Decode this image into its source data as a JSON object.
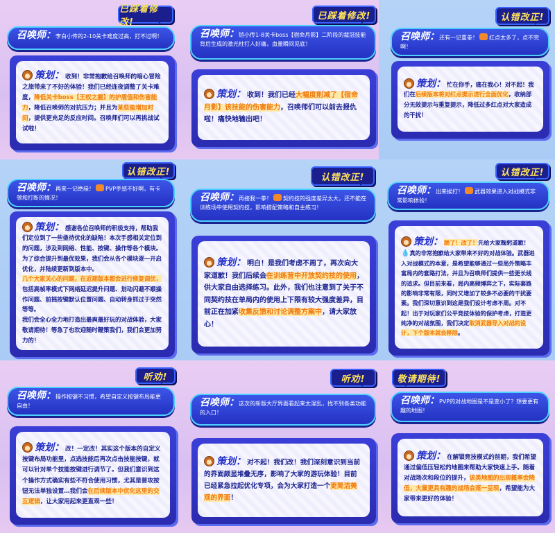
{
  "labels": {
    "player": "召唤师：",
    "designer": "策划："
  },
  "colors": {
    "badge_bg": "#1b1f8e",
    "badge_text": "#ffe35a",
    "bubble": "#2f44d8",
    "highlight": "#f07a10",
    "reply_text": "#1d2490"
  },
  "cards": [
    {
      "badge": "已踩着修改!",
      "player": "李白小传的2-10关卡难度过高，打不过啊！",
      "reply": [
        {
          "t": "收到！非常抱歉给召唤师的暗心冒险之旅带来了不好的体验！我们已经连夜调整了关卡难度，"
        },
        {
          "t": "降低关卡boss【王权之握】的护盾值和伤害能力",
          "hl": true
        },
        {
          "t": "，降低召唤师的对抗压力；并且为"
        },
        {
          "t": "某些能增加时间",
          "hl": true
        },
        {
          "t": "，提供更充足的反应时间。召唤师们可以再挑战试试啦！"
        }
      ]
    },
    {
      "badge": "已踩着修改!",
      "player": "铠小传1-8关卡boss【宿命月影】二阶段的裁冠技能背后生成的激光柱打人好痛，血量瞬间见底！",
      "reply": [
        {
          "t": "收到！我们已经"
        },
        {
          "t": "大幅度削减了【宿命月影】该技能的伤害能力",
          "hl": true
        },
        {
          "t": "，召唤师们可以前去报仇啦！痛快地输出吧！"
        }
      ]
    },
    {
      "badge": "认错改正!",
      "player_pre": "还有一记重拳！",
      "player": "红点太多了，点不完啊！",
      "icon": "fist-icon",
      "reply": [
        {
          "t": "忙在你手，痛在我心！对不起！我们在"
        },
        {
          "t": "后续版本将对红点提示进行全面优化",
          "hl": true
        },
        {
          "t": "，收纳部分无效提示与重复提示，降低过多红点对大家造成的干扰！"
        }
      ]
    },
    {
      "badge": "认错改正!",
      "player_pre": "再来一记绝缘！",
      "player": "PVP手感不好啊，有卡顿和打断的情况！",
      "icon": "fist-icon",
      "reply": [
        {
          "t": "感谢各位召唤师的积极支持，帮助我们定位到了一些亟待优化的缺陷！本次手感相关定位到的问题，涉及到网络、性能、按键、操作等各个模块。为了综合提升到最优效果，我们会从各个模块逐一开启优化，并陆续更新到版本中。"
        },
        {
          "br": true
        },
        {
          "t": "几个大家关心的问题，在近期版本都会进行修复调优，",
          "hl": true
        },
        {
          "t": "包括高帧率模式下网络延迟提升问题、划动闪避不顺操作问题、前摇按键默认位置问题、自动转身抓过于突然等等。"
        },
        {
          "br": true
        },
        {
          "t": "我们会全心全力地打造出最爽最好玩的对战体验，大家敬请期待！等急了也欢迎随时鞭策我们，我们会更加努力的！"
        }
      ]
    },
    {
      "badge": "认错改正!",
      "player_pre": "再接我一拳！",
      "player": "契约技的强度差异太大，还不能在训练场中使用契约技，影响搭配策略和自主练习！",
      "icon": "fist-icon",
      "reply": [
        {
          "t": "明白！是我们考虑不周了，再次向大家道歉！我们后续会"
        },
        {
          "t": "在训练营中开放契约技的使用",
          "hl": true
        },
        {
          "t": "，供大家自由选择练习。此外，我们也注意到了关于不同契约技在单局内的使用上下限有较大强度差异，目前正在加紧"
        },
        {
          "t": "收集反馈和讨论调整方案中",
          "hl": true
        },
        {
          "t": "，请大家放心！"
        }
      ]
    },
    {
      "badge": "认错改正!",
      "player_pre": "出来挨打！",
      "player": "武器效果进入对战模式非常影响体验！",
      "icon": "fist-icon",
      "reply": [
        {
          "t": "跪了！改了！",
          "hl": true
        },
        {
          "t": "先给大家鞠躬道歉！"
        },
        {
          "drop": true
        },
        {
          "t": "真的非常抱歉给大家带来不好的对战体验。武器进入对战模式的本意，是希望能够通过一些局外策略丰富局内的套路打法，并且为召唤师们提供一些更长线的追求。但目前来看，局内高频博弈之下，实际套路的影响非常有限，同时又增加了较多不必要的干扰要素。我们深切意识到这是我们设计考虑不周。对不起！出于对玩家们公平竞技体验的保护考虑，打造更纯净的对战氛围，我们决定"
        },
        {
          "t": "取消武器导入对战的设计，下个版本就会移除",
          "hl": true
        },
        {
          "t": "。"
        }
      ]
    },
    {
      "badge": "听劝!",
      "player": "操作按键不习惯，希望自定义按键布局能更自由！",
      "reply": [
        {
          "t": "改！一定改！其实这个版本的自定义按键布局功能里，点选技能后再次点击技能按键，就可以针对单个技能按键进行调节了。但我们意识到这个操作方式确实有些不符合使用习惯，尤其是普攻按钮无法单独设置…我们会"
        },
        {
          "t": "在后续版本中优化这里的交互逻辑",
          "hl": true
        },
        {
          "t": "，让大家用起来更直观一些！"
        }
      ]
    },
    {
      "badge": "听劝!",
      "player": "这次的新版大厅界面看起来太混乱，找不到各类功能的入口！",
      "reply": [
        {
          "t": "对不起！我们改！我们深刻意识到当前的界面颇显堆叠无序，影响了大家的游玩体验！目前已经紧急拉起优化专项，会为大家打造一个"
        },
        {
          "t": "更简洁美观的界面",
          "hl": true
        },
        {
          "t": "！"
        }
      ]
    },
    {
      "badge": "敬请期待!",
      "player": "PVP的对战地图是不是变小了？想要更有趣的地图！",
      "reply": [
        {
          "t": "在解锁竞技模式的前期，我们希望通过偏低压轻松的地图来帮助大家快速上手。随着对战场次和段位的提升，"
        },
        {
          "t": "该类地图的出现概率会降低，大量更具有趣的战场会逐一呈现",
          "hl": true
        },
        {
          "t": "，希望能为大家带来更好的体验！"
        }
      ]
    }
  ]
}
